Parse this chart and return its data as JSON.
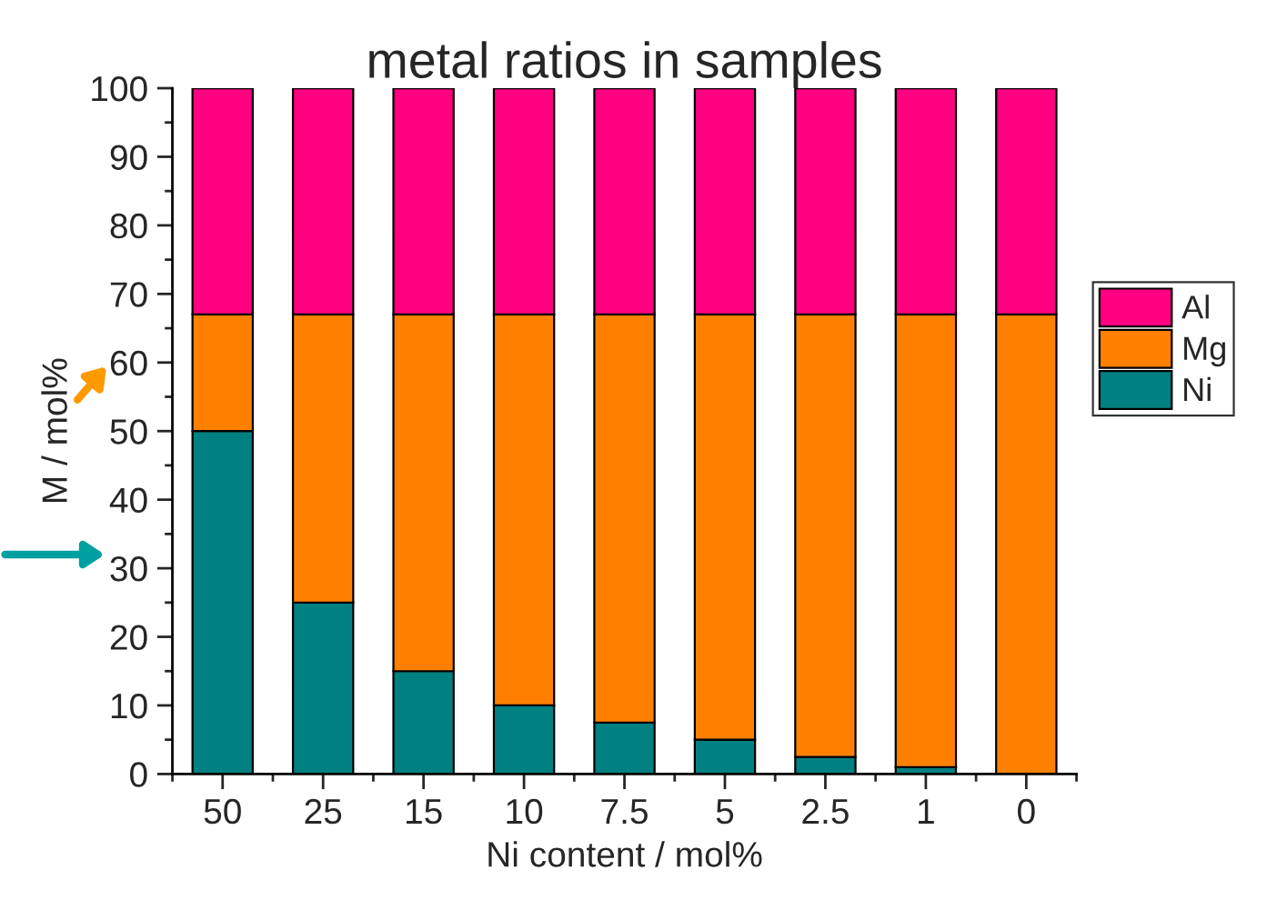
{
  "chart_data": {
    "type": "bar",
    "title": "metal ratios in samples",
    "xlabel": "Ni content / mol%",
    "ylabel": "M / mol%",
    "categories": [
      "50",
      "25",
      "15",
      "10",
      "7.5",
      "5",
      "2.5",
      "1",
      "0"
    ],
    "stacked": true,
    "series": [
      {
        "name": "Ni",
        "color": "#008080",
        "values": [
          50,
          25,
          15,
          10,
          7.5,
          5,
          2.5,
          1,
          0
        ]
      },
      {
        "name": "Mg",
        "color": "#ff8000",
        "values": [
          17,
          42,
          52,
          57,
          59.5,
          62,
          64.5,
          66,
          67
        ]
      },
      {
        "name": "Al",
        "color": "#ff0080",
        "values": [
          33,
          33,
          33,
          33,
          33,
          33,
          33,
          33,
          33
        ]
      }
    ],
    "ylim": [
      0,
      100
    ],
    "yticks": [
      0,
      {
        "value": 5,
        "label": null
      },
      10,
      {
        "value": 15,
        "label": null
      },
      20,
      {
        "value": 25,
        "label": null
      },
      30,
      {
        "value": 35,
        "label": null
      },
      40,
      {
        "value": 45,
        "label": null
      },
      50,
      {
        "value": 55,
        "label": null
      },
      60,
      {
        "value": 65,
        "label": null
      },
      70,
      {
        "value": 75,
        "label": null
      },
      80,
      {
        "value": 85,
        "label": null
      },
      90,
      {
        "value": 95,
        "label": null
      },
      100
    ],
    "grid": false,
    "legend": "right"
  }
}
